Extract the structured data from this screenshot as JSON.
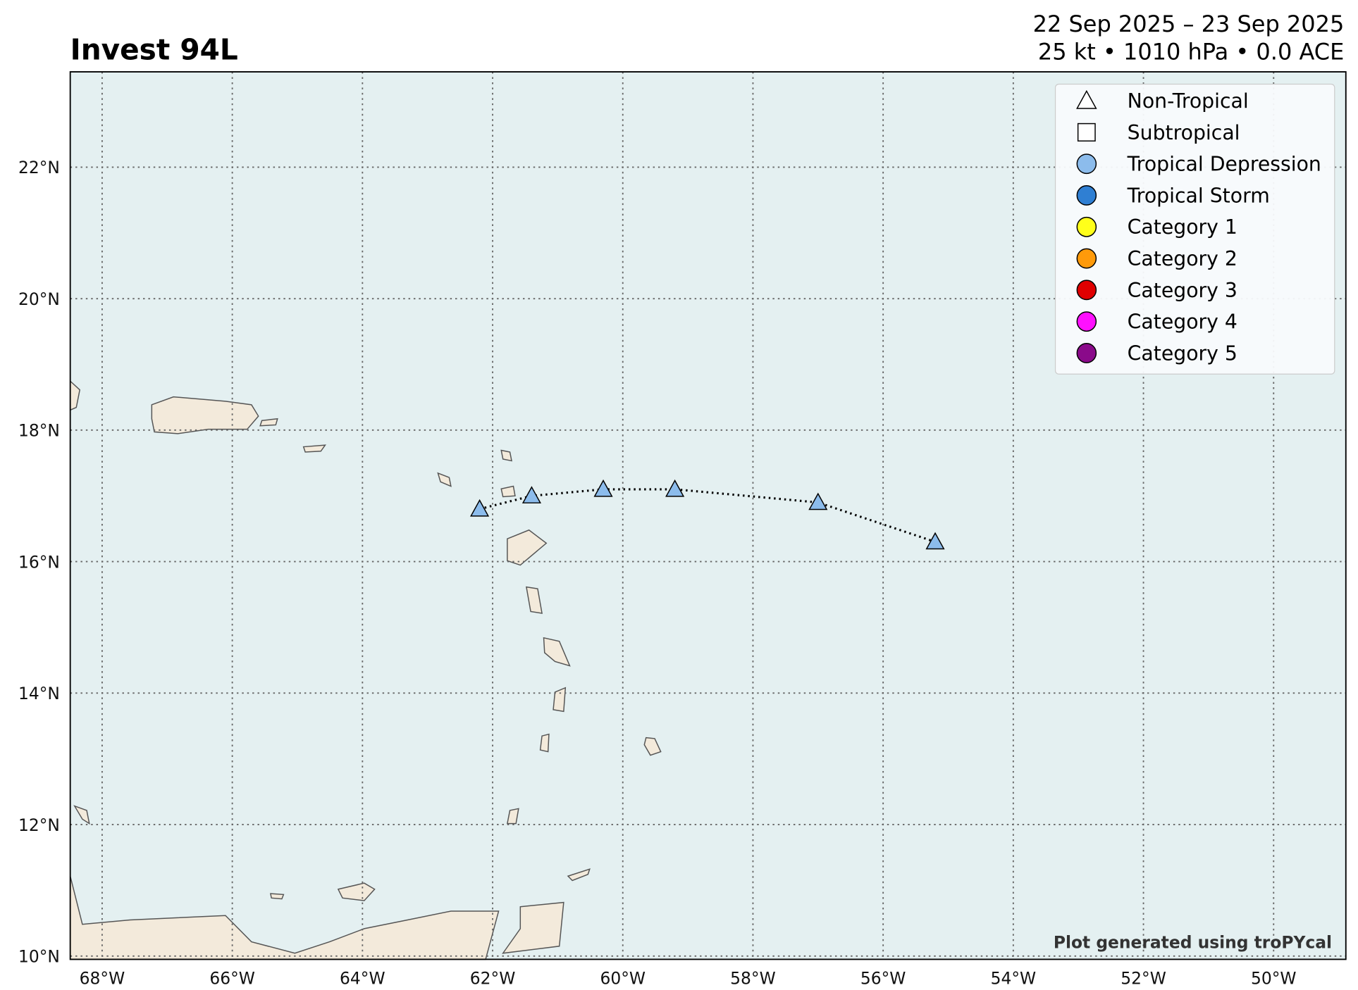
{
  "chart_data": {
    "type": "track",
    "title": "Invest 94L",
    "subtitle": [
      "22 Sep 2025 – 23 Sep 2025",
      "25 kt • 1010 hPa • 0.0 ACE"
    ],
    "credit": "Plot generated using troPYcal",
    "x": [
      -62.2,
      -61.4,
      -60.3,
      -59.2,
      -57.0,
      -55.2
    ],
    "values": [
      16.8,
      17.0,
      17.1,
      17.1,
      16.9,
      16.3
    ],
    "color": "#8cbcec",
    "marker": "triangle",
    "line_style": "dotted",
    "xlim": [
      -68.49,
      -48.89
    ],
    "ylim": [
      9.95,
      23.45
    ],
    "xticks": [
      {
        "value": -68,
        "label": "68°W"
      },
      {
        "value": -66,
        "label": "66°W"
      },
      {
        "value": -64,
        "label": "64°W"
      },
      {
        "value": -62,
        "label": "62°W"
      },
      {
        "value": -60,
        "label": "60°W"
      },
      {
        "value": -58,
        "label": "58°W"
      },
      {
        "value": -56,
        "label": "56°W"
      },
      {
        "value": -54,
        "label": "54°W"
      },
      {
        "value": -52,
        "label": "52°W"
      },
      {
        "value": -50,
        "label": "50°W"
      }
    ],
    "yticks": [
      {
        "value": 10,
        "label": "10°N"
      },
      {
        "value": 12,
        "label": "12°N"
      },
      {
        "value": 14,
        "label": "14°N"
      },
      {
        "value": 16,
        "label": "16°N"
      },
      {
        "value": 18,
        "label": "18°N"
      },
      {
        "value": 20,
        "label": "20°N"
      },
      {
        "value": 22,
        "label": "22°N"
      }
    ],
    "grid": true,
    "legend": {
      "position": "upper right",
      "entries": [
        {
          "name": "Non-Tropical",
          "marker": "triangle",
          "color": "#ffffff"
        },
        {
          "name": "Subtropical",
          "marker": "square",
          "color": "#ffffff"
        },
        {
          "name": "Tropical Depression",
          "marker": "circle",
          "color": "#8cbcec"
        },
        {
          "name": "Tropical Storm",
          "marker": "circle",
          "color": "#2f7fd3"
        },
        {
          "name": "Category 1",
          "marker": "circle",
          "color": "#ffff1a"
        },
        {
          "name": "Category 2",
          "marker": "circle",
          "color": "#ff9a0a"
        },
        {
          "name": "Category 3",
          "marker": "circle",
          "color": "#e00000"
        },
        {
          "name": "Category 4",
          "marker": "circle",
          "color": "#ff10ff"
        },
        {
          "name": "Category 5",
          "marker": "circle",
          "color": "#8a0a8a"
        }
      ]
    }
  }
}
